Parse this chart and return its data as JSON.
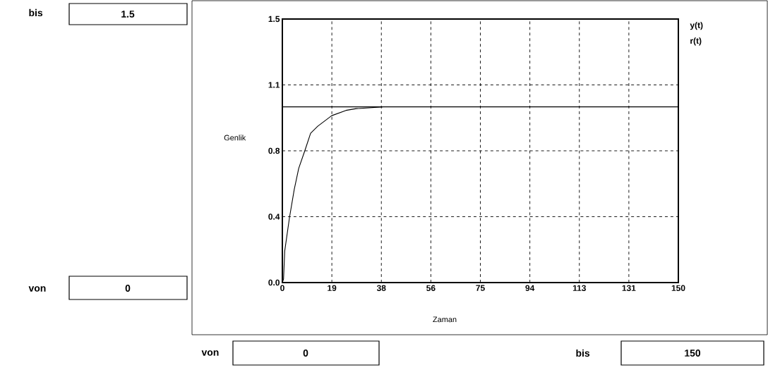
{
  "chart_data": {
    "type": "line",
    "xlabel": "Zaman",
    "ylabel": "Genlik",
    "xlim": [
      0,
      150
    ],
    "ylim": [
      0,
      1.5
    ],
    "xticks": [
      0,
      {
        "value": 18.75,
        "label": "19"
      },
      {
        "value": 37.5,
        "label": "38"
      },
      {
        "value": 56.25,
        "label": "56"
      },
      75,
      {
        "value": 93.75,
        "label": "94"
      },
      {
        "value": 112.5,
        "label": "113"
      },
      {
        "value": 131.25,
        "label": "131"
      },
      150
    ],
    "yticks": [
      {
        "value": 0,
        "label": "0.0"
      },
      {
        "value": 0.375,
        "label": "0.4"
      },
      {
        "value": 0.75,
        "label": "0.8"
      },
      {
        "value": 1.125,
        "label": "1.1"
      },
      1.5
    ],
    "grid": true,
    "legend": "top right",
    "marker": "none",
    "line_style": "solid",
    "series": [
      {
        "name": "y(t)",
        "color": "#000000",
        "x": [
          0,
          0.45,
          0.9,
          2.7,
          4.5,
          6.2,
          8.5,
          10.7,
          13.4,
          18.7,
          24.1,
          28,
          38
        ],
        "values": [
          0,
          0.02,
          0.18,
          0.37,
          0.53,
          0.65,
          0.75,
          0.85,
          0.89,
          0.95,
          0.98,
          0.99,
          1.0
        ]
      },
      {
        "name": "r(t)",
        "color": "#000000",
        "x": [
          0,
          150
        ],
        "values": [
          1.0,
          1.0
        ]
      }
    ],
    "annotations": [
      "bis",
      "1.5",
      "von",
      "0",
      "von",
      "0",
      "bis",
      "150"
    ]
  }
}
